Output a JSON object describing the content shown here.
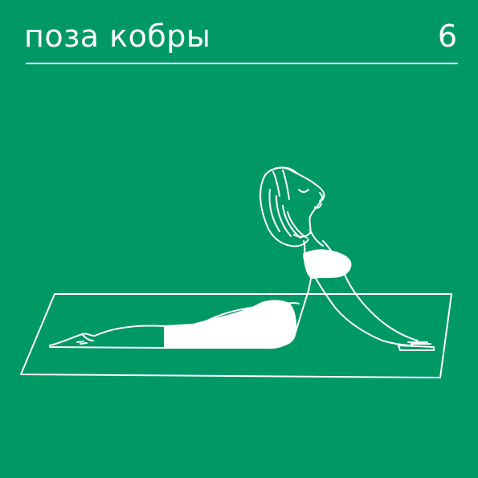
{
  "header": {
    "title": "поза кобры",
    "number": "6"
  },
  "illustration": {
    "subject": "cobra-pose",
    "colors": {
      "background": "#009865",
      "line": "#ffffff"
    }
  }
}
